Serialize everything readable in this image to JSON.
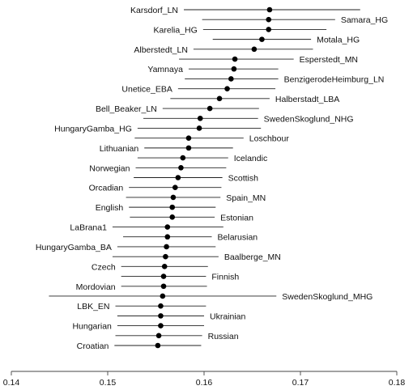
{
  "chart_data": {
    "type": "scatter",
    "title": "",
    "xlabel": "",
    "ylabel": "",
    "xlim": [
      0.14,
      0.18
    ],
    "x_ticks": [
      "0.14",
      "0.15",
      "0.16",
      "0.17",
      "0.18"
    ],
    "grid": false,
    "point_color": "#000000",
    "whisker_color": "#222222",
    "points": [
      {
        "label": "Karsdorf_LN",
        "value": 0.1668,
        "low": 0.1579,
        "high": 0.1762
      },
      {
        "label": "Samara_HG",
        "value": 0.1667,
        "low": 0.1598,
        "high": 0.1736
      },
      {
        "label": "Karelia_HG",
        "value": 0.1667,
        "low": 0.1599,
        "high": 0.1727
      },
      {
        "label": "Motala_HG",
        "value": 0.166,
        "low": 0.1609,
        "high": 0.1711
      },
      {
        "label": "Alberstedt_LN",
        "value": 0.1652,
        "low": 0.1589,
        "high": 0.1713
      },
      {
        "label": "Esperstedt_MN",
        "value": 0.1632,
        "low": 0.1574,
        "high": 0.1693
      },
      {
        "label": "Yamnaya",
        "value": 0.1631,
        "low": 0.1584,
        "high": 0.1677
      },
      {
        "label": "BenzigerodeHeimburg_LN",
        "value": 0.1628,
        "low": 0.158,
        "high": 0.1677
      },
      {
        "label": "Unetice_EBA",
        "value": 0.1624,
        "low": 0.1573,
        "high": 0.1674
      },
      {
        "label": "Halberstadt_LBA",
        "value": 0.1616,
        "low": 0.1565,
        "high": 0.1668
      },
      {
        "label": "Bell_Beaker_LN",
        "value": 0.1606,
        "low": 0.1557,
        "high": 0.1657
      },
      {
        "label": "SwedenSkoglund_NHG",
        "value": 0.1596,
        "low": 0.1537,
        "high": 0.1656
      },
      {
        "label": "HungaryGamba_HG",
        "value": 0.1595,
        "low": 0.1531,
        "high": 0.1659
      },
      {
        "label": "Loschbour",
        "value": 0.1584,
        "low": 0.1528,
        "high": 0.1641
      },
      {
        "label": "Lithuanian",
        "value": 0.1584,
        "low": 0.1538,
        "high": 0.163
      },
      {
        "label": "Icelandic",
        "value": 0.1578,
        "low": 0.1531,
        "high": 0.1625
      },
      {
        "label": "Norwegian",
        "value": 0.1576,
        "low": 0.1529,
        "high": 0.1623
      },
      {
        "label": "Scottish",
        "value": 0.1573,
        "low": 0.1527,
        "high": 0.1619
      },
      {
        "label": "Orcadian",
        "value": 0.157,
        "low": 0.1522,
        "high": 0.1618
      },
      {
        "label": "Spain_MN",
        "value": 0.1568,
        "low": 0.1519,
        "high": 0.1617
      },
      {
        "label": "English",
        "value": 0.1567,
        "low": 0.1522,
        "high": 0.1612
      },
      {
        "label": "Estonian",
        "value": 0.1567,
        "low": 0.1523,
        "high": 0.1611
      },
      {
        "label": "LaBrana1",
        "value": 0.1562,
        "low": 0.1505,
        "high": 0.162
      },
      {
        "label": "Belarusian",
        "value": 0.1562,
        "low": 0.1516,
        "high": 0.1608
      },
      {
        "label": "HungaryGamba_BA",
        "value": 0.1561,
        "low": 0.151,
        "high": 0.1612
      },
      {
        "label": "Baalberge_MN",
        "value": 0.156,
        "low": 0.1505,
        "high": 0.1615
      },
      {
        "label": "Czech",
        "value": 0.1559,
        "low": 0.1514,
        "high": 0.1604
      },
      {
        "label": "Finnish",
        "value": 0.1558,
        "low": 0.1514,
        "high": 0.1602
      },
      {
        "label": "Mordovian",
        "value": 0.1558,
        "low": 0.1514,
        "high": 0.1603
      },
      {
        "label": "SwedenSkoglund_MHG",
        "value": 0.1557,
        "low": 0.1439,
        "high": 0.1675
      },
      {
        "label": "LBK_EN",
        "value": 0.1555,
        "low": 0.1508,
        "high": 0.1602
      },
      {
        "label": "Ukrainian",
        "value": 0.1555,
        "low": 0.151,
        "high": 0.16
      },
      {
        "label": "Hungarian",
        "value": 0.1555,
        "low": 0.151,
        "high": 0.16
      },
      {
        "label": "Russian",
        "value": 0.1553,
        "low": 0.1508,
        "high": 0.1598
      },
      {
        "label": "Croatian",
        "value": 0.1552,
        "low": 0.1507,
        "high": 0.1597
      }
    ]
  }
}
